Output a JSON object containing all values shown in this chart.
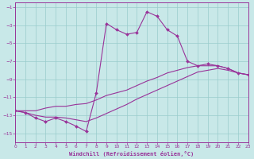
{
  "xlabel": "Windchill (Refroidissement éolien,°C)",
  "background_color": "#c8e8e8",
  "grid_color": "#99cccc",
  "line_color": "#993399",
  "x_min": 0,
  "x_max": 23,
  "y_min": -16,
  "y_max": 0,
  "y_ticks": [
    -1,
    -3,
    -5,
    -7,
    -9,
    -11,
    -13,
    -15
  ],
  "x_ticks": [
    0,
    1,
    2,
    3,
    4,
    5,
    6,
    7,
    8,
    9,
    10,
    11,
    12,
    13,
    14,
    15,
    16,
    17,
    18,
    19,
    20,
    21,
    22,
    23
  ],
  "series1_x": [
    0,
    1,
    2,
    3,
    4,
    5,
    6,
    7,
    8,
    9,
    10,
    11,
    12,
    13,
    14,
    15,
    16,
    17,
    18,
    19,
    20,
    21,
    22,
    23
  ],
  "series1_y": [
    -12.5,
    -12.7,
    -13.3,
    -13.7,
    -13.3,
    -13.7,
    -14.2,
    -14.8,
    -10.5,
    -2.8,
    -3.5,
    -4.0,
    -3.8,
    -1.5,
    -2.0,
    -3.5,
    -4.2,
    -7.0,
    -7.5,
    -7.3,
    -7.5,
    -7.8,
    -8.3,
    -8.5
  ],
  "series2_x": [
    0,
    1,
    2,
    3,
    4,
    5,
    6,
    7,
    8,
    9,
    10,
    11,
    12,
    13,
    14,
    15,
    16,
    17,
    18,
    19,
    20,
    21,
    22,
    23
  ],
  "series2_y": [
    -12.5,
    -12.5,
    -12.5,
    -12.2,
    -12.0,
    -12.0,
    -11.8,
    -11.7,
    -11.3,
    -10.8,
    -10.5,
    -10.2,
    -9.7,
    -9.2,
    -8.8,
    -8.3,
    -8.0,
    -7.7,
    -7.5,
    -7.5,
    -7.5,
    -7.8,
    -8.3,
    -8.5
  ],
  "series3_x": [
    0,
    1,
    2,
    3,
    4,
    5,
    6,
    7,
    8,
    9,
    10,
    11,
    12,
    13,
    14,
    15,
    16,
    17,
    18,
    19,
    20,
    21,
    22,
    23
  ],
  "series3_y": [
    -12.5,
    -12.7,
    -13.0,
    -13.2,
    -13.2,
    -13.3,
    -13.5,
    -13.7,
    -13.3,
    -12.8,
    -12.3,
    -11.8,
    -11.2,
    -10.7,
    -10.2,
    -9.7,
    -9.2,
    -8.7,
    -8.2,
    -8.0,
    -7.8,
    -8.0,
    -8.3,
    -8.5
  ]
}
